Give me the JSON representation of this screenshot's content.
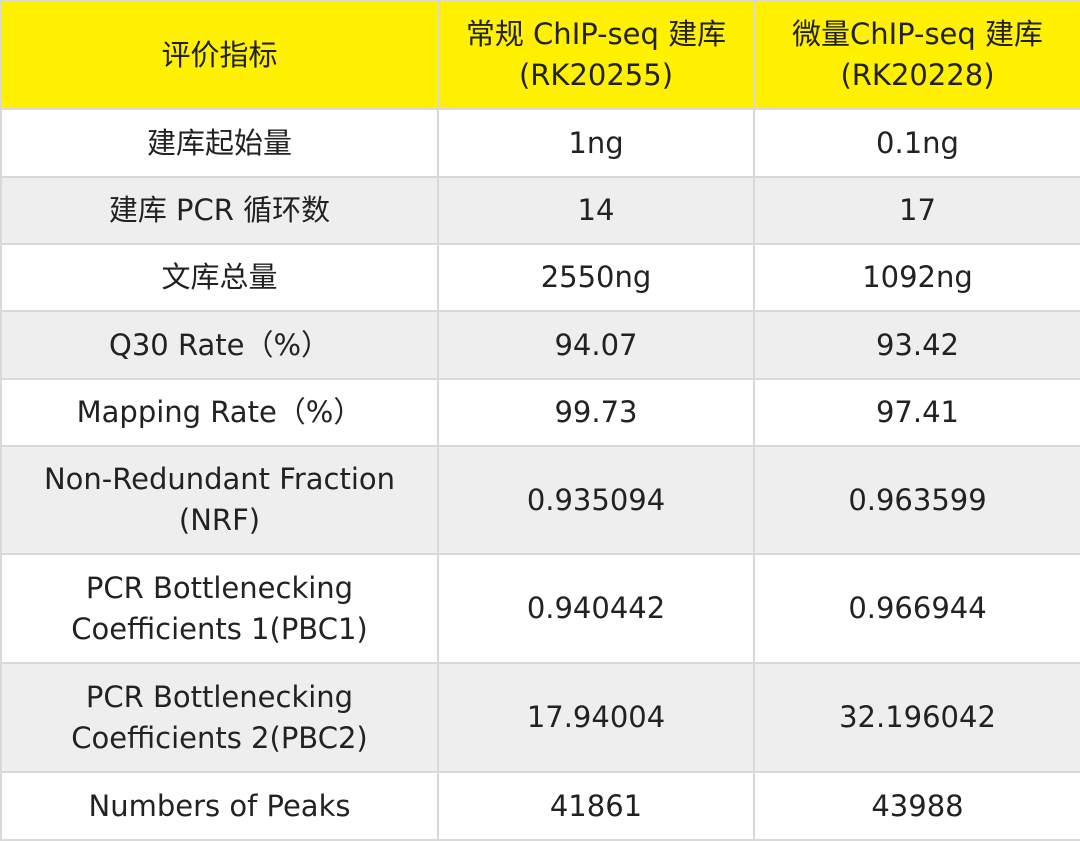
{
  "table": {
    "header": [
      "评价指标",
      "常规 ChIP-seq 建库\n(RK20255)",
      "微量ChIP-seq 建库\n(RK20228)"
    ],
    "rows": [
      [
        "建库起始量",
        "1ng",
        "0.1ng"
      ],
      [
        "建库 PCR 循环数",
        "14",
        "17"
      ],
      [
        "文库总量",
        "2550ng",
        "1092ng"
      ],
      [
        "Q30 Rate（%）",
        "94.07",
        "93.42"
      ],
      [
        "Mapping Rate（%）",
        "99.73",
        "97.41"
      ],
      [
        "Non-Redundant Fraction\n(NRF)",
        "0.935094",
        "0.963599"
      ],
      [
        "PCR Bottlenecking\nCoefficients 1(PBC1)",
        "0.940442",
        "0.966944"
      ],
      [
        "PCR Bottlenecking\nCoefficients 2(PBC2)",
        "17.94004",
        "32.196042"
      ],
      [
        "Numbers of Peaks",
        "41861",
        "43988"
      ]
    ]
  }
}
